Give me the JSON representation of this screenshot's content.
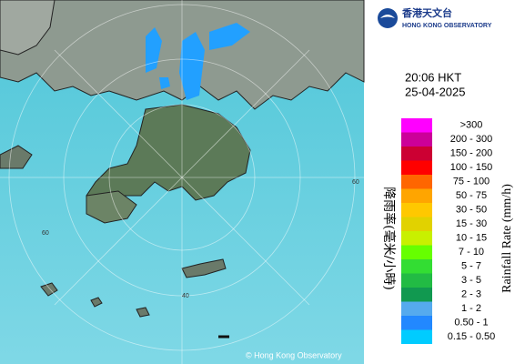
{
  "header": {
    "title_zh": "香港天文台",
    "title_en": "HONG KONG OBSERVATORY"
  },
  "time": "20:06 HKT",
  "date": "25-04-2025",
  "legend": {
    "title_zh": "降雨率(毫米/小時)",
    "title_en": "Rainfall Rate (mm/h)",
    "items": [
      {
        "label": ">300",
        "color": "#ff00ff"
      },
      {
        "label": "200 - 300",
        "color": "#cc0099"
      },
      {
        "label": "150 - 200",
        "color": "#cc0033"
      },
      {
        "label": "100 - 150",
        "color": "#ff0000"
      },
      {
        "label": "75 - 100",
        "color": "#ff6600"
      },
      {
        "label": "50 - 75",
        "color": "#ffa500"
      },
      {
        "label": "30 - 50",
        "color": "#ffc800"
      },
      {
        "label": "15 - 30",
        "color": "#e1d200"
      },
      {
        "label": "10 - 15",
        "color": "#c8f000"
      },
      {
        "label": "7 - 10",
        "color": "#66ff00"
      },
      {
        "label": "5 - 7",
        "color": "#33dd33"
      },
      {
        "label": "3 - 5",
        "color": "#22bb44"
      },
      {
        "label": "2 - 3",
        "color": "#119950"
      },
      {
        "label": "1 - 2",
        "color": "#55aaee"
      },
      {
        "label": "0.50 - 1",
        "color": "#2288ff"
      },
      {
        "label": "0.15 - 0.50",
        "color": "#00ccff"
      }
    ]
  },
  "map": {
    "ring_labels": [
      "60",
      "40",
      "60"
    ],
    "copyright": "© Hong Kong Observatory"
  }
}
